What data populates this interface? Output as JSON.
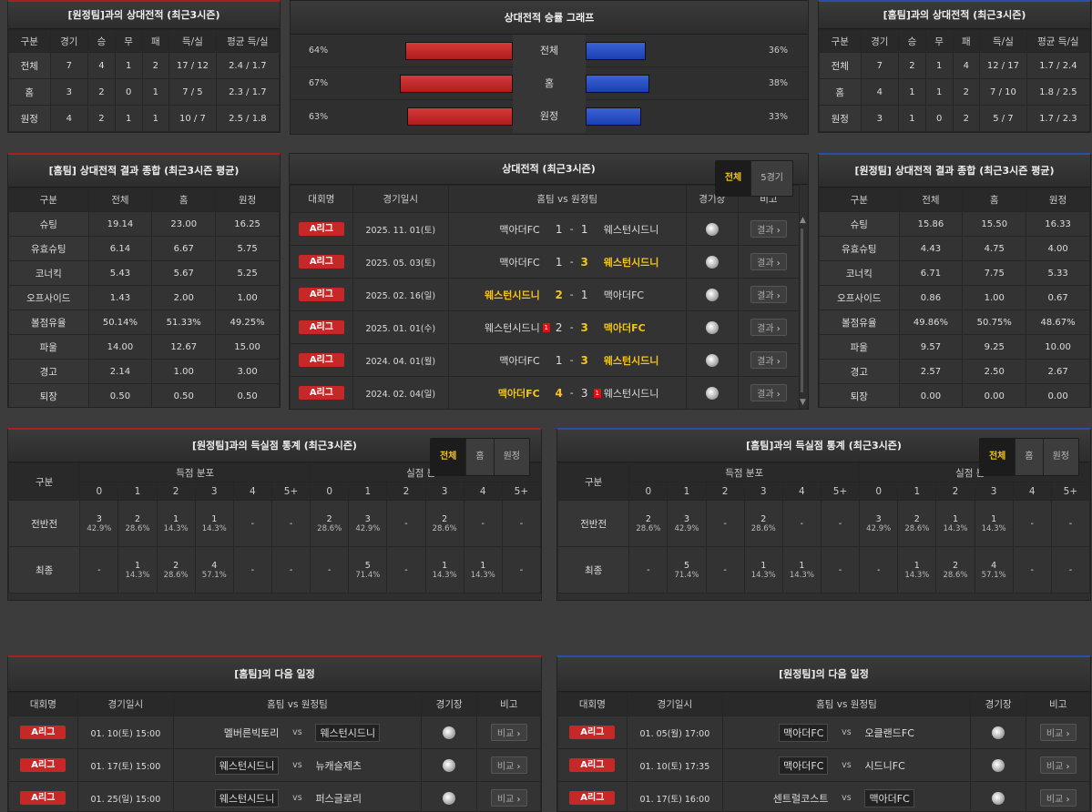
{
  "h2h_away": {
    "title": "[원정팀]과의 상대전적 (최근3시즌)",
    "headers": [
      "구분",
      "경기",
      "승",
      "무",
      "패",
      "득/실",
      "평균 득/실"
    ],
    "rows": [
      [
        "전체",
        "7",
        "4",
        "1",
        "2",
        "17 / 12",
        "2.4 / 1.7"
      ],
      [
        "홈",
        "3",
        "2",
        "0",
        "1",
        "7 / 5",
        "2.3 / 1.7"
      ],
      [
        "원정",
        "4",
        "2",
        "1",
        "1",
        "10 / 7",
        "2.5 / 1.8"
      ]
    ]
  },
  "win_graph": {
    "title": "상대전적 승률 그래프",
    "rows": [
      {
        "label": "전체",
        "left": "64%",
        "right": "36%",
        "lv": 64,
        "rv": 36
      },
      {
        "label": "홈",
        "left": "67%",
        "right": "38%",
        "lv": 67,
        "rv": 38
      },
      {
        "label": "원정",
        "left": "63%",
        "right": "33%",
        "lv": 63,
        "rv": 33
      }
    ]
  },
  "h2h_home": {
    "title": "[홈팀]과의 상대전적 (최근3시즌)",
    "headers": [
      "구분",
      "경기",
      "승",
      "무",
      "패",
      "득/실",
      "평균 득/실"
    ],
    "rows": [
      [
        "전체",
        "7",
        "2",
        "1",
        "4",
        "12 / 17",
        "1.7 / 2.4"
      ],
      [
        "홈",
        "4",
        "1",
        "1",
        "2",
        "7 / 10",
        "1.8 / 2.5"
      ],
      [
        "원정",
        "3",
        "1",
        "0",
        "2",
        "5 / 7",
        "1.7 / 2.3"
      ]
    ]
  },
  "home_summary": {
    "title": "[홈팀] 상대전적 결과 종합 (최근3시즌 평균)",
    "headers": [
      "구분",
      "전체",
      "홈",
      "원정"
    ],
    "rows": [
      [
        "슈팅",
        "19.14",
        "23.00",
        "16.25"
      ],
      [
        "유효슈팅",
        "6.14",
        "6.67",
        "5.75"
      ],
      [
        "코너킥",
        "5.43",
        "5.67",
        "5.25"
      ],
      [
        "오프사이드",
        "1.43",
        "2.00",
        "1.00"
      ],
      [
        "볼점유율",
        "50.14%",
        "51.33%",
        "49.25%"
      ],
      [
        "파울",
        "14.00",
        "12.67",
        "15.00"
      ],
      [
        "경고",
        "2.14",
        "1.00",
        "3.00"
      ],
      [
        "퇴장",
        "0.50",
        "0.50",
        "0.50"
      ]
    ]
  },
  "h2h_list": {
    "title": "상대전적 (최근3시즌)",
    "toggle": [
      "전체",
      "5경기"
    ],
    "headers": {
      "league": "대회명",
      "date": "경기일시",
      "teams": "홈팀  vs  원정팀",
      "venue": "경기장",
      "note": "비고"
    },
    "matches": [
      {
        "league": "A리그",
        "date": "2025. 11. 01(토)",
        "home": "맥아더FC",
        "hs": "1",
        "as": "1",
        "away": "웨스턴시드니",
        "win": "none",
        "rc": "none"
      },
      {
        "league": "A리그",
        "date": "2025. 05. 03(토)",
        "home": "맥아더FC",
        "hs": "1",
        "as": "3",
        "away": "웨스턴시드니",
        "win": "away",
        "rc": "none"
      },
      {
        "league": "A리그",
        "date": "2025. 02. 16(일)",
        "home": "웨스턴시드니",
        "hs": "2",
        "as": "1",
        "away": "맥아더FC",
        "win": "home",
        "rc": "none"
      },
      {
        "league": "A리그",
        "date": "2025. 01. 01(수)",
        "home": "웨스턴시드니",
        "hs": "2",
        "as": "3",
        "away": "맥아더FC",
        "win": "away",
        "rc": "home"
      },
      {
        "league": "A리그",
        "date": "2024. 04. 01(월)",
        "home": "맥아더FC",
        "hs": "1",
        "as": "3",
        "away": "웨스턴시드니",
        "win": "away",
        "rc": "none"
      },
      {
        "league": "A리그",
        "date": "2024. 02. 04(일)",
        "home": "맥아더FC",
        "hs": "4",
        "as": "3",
        "away": "웨스턴시드니",
        "win": "home",
        "rc": "away"
      }
    ],
    "result_btn": "결과",
    "dash": "-",
    "red_card": "1"
  },
  "away_summary": {
    "title": "[원정팀] 상대전적 결과 종합 (최근3시즌 평균)",
    "headers": [
      "구분",
      "전체",
      "홈",
      "원정"
    ],
    "rows": [
      [
        "슈팅",
        "15.86",
        "15.50",
        "16.33"
      ],
      [
        "유효슈팅",
        "4.43",
        "4.75",
        "4.00"
      ],
      [
        "코너킥",
        "6.71",
        "7.75",
        "5.33"
      ],
      [
        "오프사이드",
        "0.86",
        "1.00",
        "0.67"
      ],
      [
        "볼점유율",
        "49.86%",
        "50.75%",
        "48.67%"
      ],
      [
        "파울",
        "9.57",
        "9.25",
        "10.00"
      ],
      [
        "경고",
        "2.57",
        "2.50",
        "2.67"
      ],
      [
        "퇴장",
        "0.00",
        "0.00",
        "0.00"
      ]
    ]
  },
  "goal_stats_left": {
    "title": "[원정팀]과의 득실점 통계 (최근3시즌)",
    "toggle": [
      "전체",
      "홈",
      "원정"
    ],
    "col0": "구분",
    "groupA": "득점 분포",
    "groupB": "실점 분포",
    "goals": [
      "0",
      "1",
      "2",
      "3",
      "4",
      "5+"
    ],
    "rows": [
      {
        "label": "전반전",
        "a": [
          [
            "3",
            "42.9%"
          ],
          [
            "2",
            "28.6%"
          ],
          [
            "1",
            "14.3%"
          ],
          [
            "1",
            "14.3%"
          ],
          [
            "-",
            ""
          ],
          [
            "-",
            ""
          ]
        ],
        "b": [
          [
            "2",
            "28.6%"
          ],
          [
            "3",
            "42.9%"
          ],
          [
            "-",
            ""
          ],
          [
            "2",
            "28.6%"
          ],
          [
            "-",
            ""
          ],
          [
            "-",
            ""
          ]
        ]
      },
      {
        "label": "최종",
        "a": [
          [
            "-",
            ""
          ],
          [
            "1",
            "14.3%"
          ],
          [
            "2",
            "28.6%"
          ],
          [
            "4",
            "57.1%"
          ],
          [
            "-",
            ""
          ],
          [
            "-",
            ""
          ]
        ],
        "b": [
          [
            "-",
            ""
          ],
          [
            "5",
            "71.4%"
          ],
          [
            "-",
            ""
          ],
          [
            "1",
            "14.3%"
          ],
          [
            "1",
            "14.3%"
          ],
          [
            "-",
            ""
          ]
        ]
      }
    ]
  },
  "goal_stats_right": {
    "title": "[홈팀]과의 득실점 통계 (최근3시즌)",
    "toggle": [
      "전체",
      "홈",
      "원정"
    ],
    "col0": "구분",
    "groupA": "득점 분포",
    "groupB": "실점 분포",
    "goals": [
      "0",
      "1",
      "2",
      "3",
      "4",
      "5+"
    ],
    "rows": [
      {
        "label": "전반전",
        "a": [
          [
            "2",
            "28.6%"
          ],
          [
            "3",
            "42.9%"
          ],
          [
            "-",
            ""
          ],
          [
            "2",
            "28.6%"
          ],
          [
            "-",
            ""
          ],
          [
            "-",
            ""
          ]
        ],
        "b": [
          [
            "3",
            "42.9%"
          ],
          [
            "2",
            "28.6%"
          ],
          [
            "1",
            "14.3%"
          ],
          [
            "1",
            "14.3%"
          ],
          [
            "-",
            ""
          ],
          [
            "-",
            ""
          ]
        ]
      },
      {
        "label": "최종",
        "a": [
          [
            "-",
            ""
          ],
          [
            "5",
            "71.4%"
          ],
          [
            "-",
            ""
          ],
          [
            "1",
            "14.3%"
          ],
          [
            "1",
            "14.3%"
          ],
          [
            "-",
            ""
          ]
        ],
        "b": [
          [
            "-",
            ""
          ],
          [
            "1",
            "14.3%"
          ],
          [
            "2",
            "28.6%"
          ],
          [
            "4",
            "57.1%"
          ],
          [
            "-",
            ""
          ],
          [
            "-",
            ""
          ]
        ]
      }
    ]
  },
  "next_home": {
    "title": "[홈팀]의 다음 일정",
    "headers": {
      "league": "대회명",
      "date": "경기일시",
      "teams": "홈팀  vs  원정팀",
      "venue": "경기장",
      "note": "비고"
    },
    "matches": [
      {
        "league": "A리그",
        "date": "01. 10(토) 15:00",
        "home": "멜버른빅토리",
        "away": "웨스턴시드니",
        "box": "away"
      },
      {
        "league": "A리그",
        "date": "01. 17(토) 15:00",
        "home": "웨스턴시드니",
        "away": "뉴캐슬제츠",
        "box": "home"
      },
      {
        "league": "A리그",
        "date": "01. 25(일) 15:00",
        "home": "웨스턴시드니",
        "away": "퍼스글로리",
        "box": "home"
      }
    ],
    "vs": "vs",
    "btn": "비교"
  },
  "next_away": {
    "title": "[원정팀]의 다음 일정",
    "headers": {
      "league": "대회명",
      "date": "경기일시",
      "teams": "홈팀  vs  원정팀",
      "venue": "경기장",
      "note": "비고"
    },
    "matches": [
      {
        "league": "A리그",
        "date": "01. 05(월) 17:00",
        "home": "맥아더FC",
        "away": "오클랜드FC",
        "box": "home"
      },
      {
        "league": "A리그",
        "date": "01. 10(토) 17:35",
        "home": "맥아더FC",
        "away": "시드니FC",
        "box": "home"
      },
      {
        "league": "A리그",
        "date": "01. 17(토) 16:00",
        "home": "센트럴코스트",
        "away": "맥아더FC",
        "box": "away"
      }
    ],
    "vs": "vs",
    "btn": "비교"
  }
}
